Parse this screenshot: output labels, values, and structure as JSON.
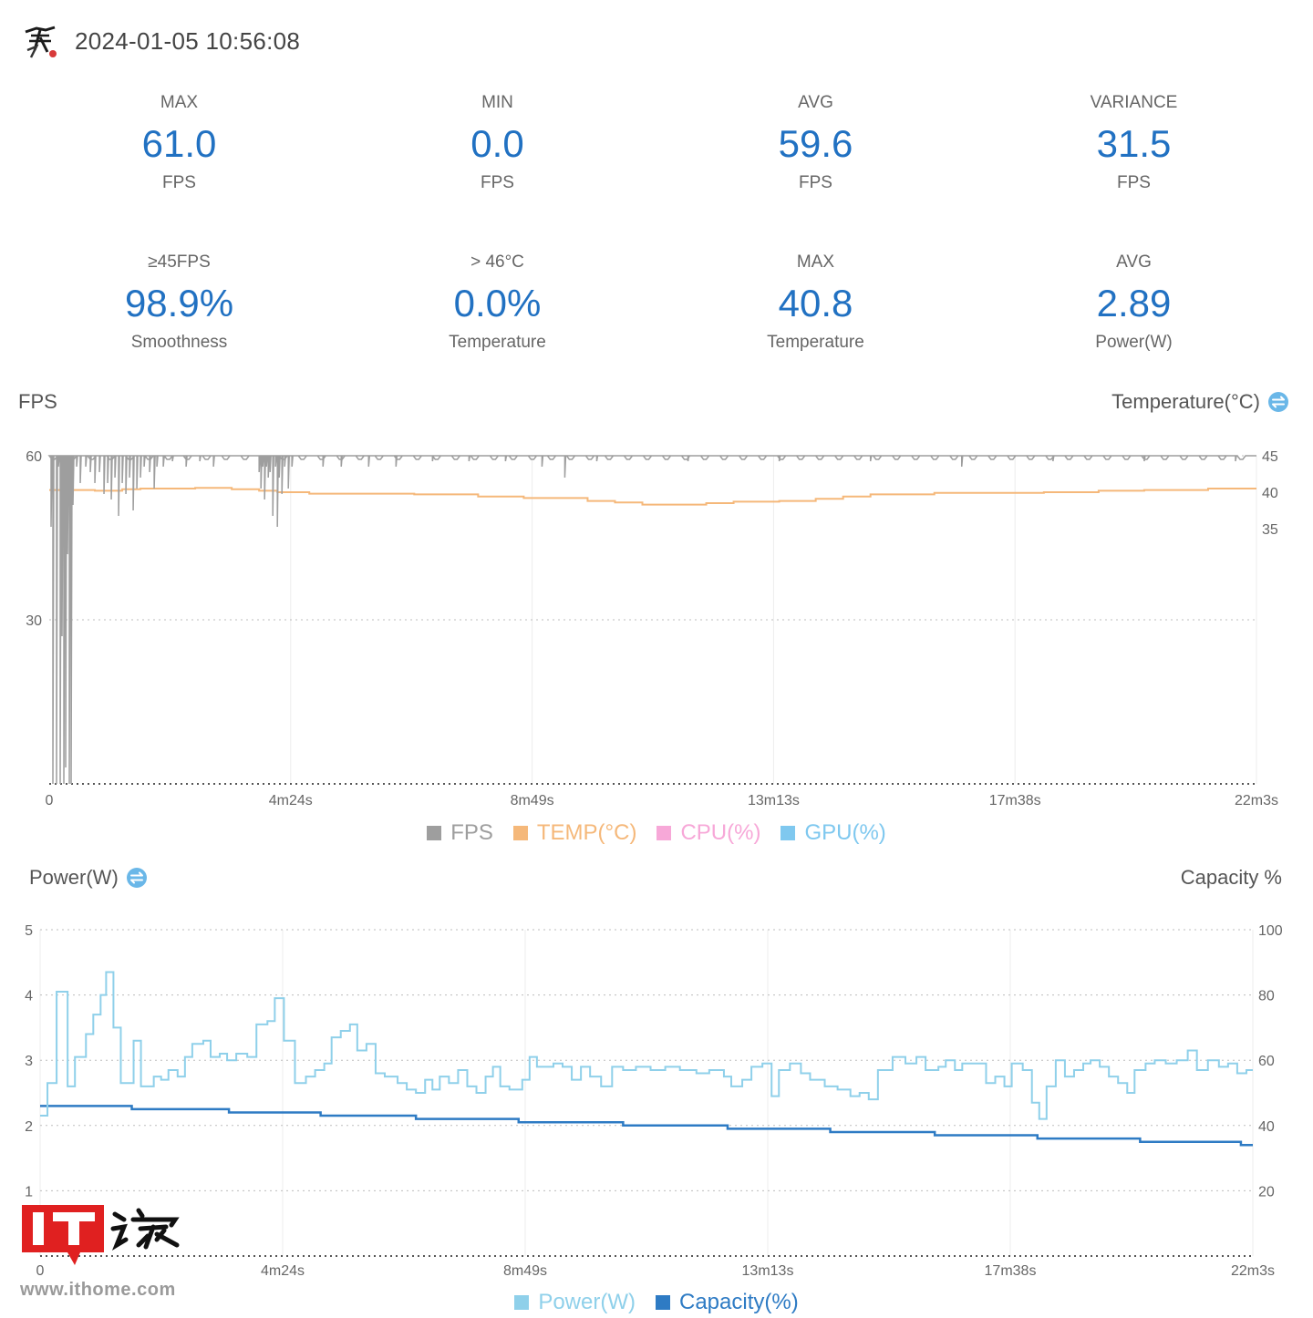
{
  "header": {
    "timestamp": "2024-01-05 10:56:08"
  },
  "stats": [
    [
      {
        "label": "MAX",
        "value": "61.0",
        "unit": "FPS"
      },
      {
        "label": "MIN",
        "value": "0.0",
        "unit": "FPS"
      },
      {
        "label": "AVG",
        "value": "59.6",
        "unit": "FPS"
      },
      {
        "label": "VARIANCE",
        "value": "31.5",
        "unit": "FPS"
      }
    ],
    [
      {
        "label": "≥45FPS",
        "value": "98.9%",
        "unit": "Smoothness"
      },
      {
        "label": "> 46°C",
        "value": "0.0%",
        "unit": "Temperature"
      },
      {
        "label": "MAX",
        "value": "40.8",
        "unit": "Temperature"
      },
      {
        "label": "AVG",
        "value": "2.89",
        "unit": "Power(W)"
      }
    ]
  ],
  "colors": {
    "accent": "#2171c2",
    "fps": "#9e9e9e",
    "temp": "#f5b87a",
    "cpu": "#f7a8d8",
    "gpu": "#7fc8ef",
    "power": "#8fd0ea",
    "capacity": "#2e7bc4",
    "swap_icon": "#6ab7e8"
  },
  "icons": {
    "avatar": "ink-painting-avatar",
    "swap": "swap-axis-icon",
    "watermark": "ithome-logo"
  },
  "watermark": {
    "url": "www.ithome.com"
  },
  "chart_data": [
    {
      "type": "line",
      "title_left": "FPS",
      "title_right": "Temperature(°C)",
      "x_ticks": [
        "0",
        "4m24s",
        "8m49s",
        "13m13s",
        "17m38s",
        "22m3s"
      ],
      "x_range_seconds": [
        0,
        1323
      ],
      "y_left": {
        "ticks": [
          "60",
          "30"
        ],
        "tick_values": [
          60,
          30
        ],
        "range": [
          0,
          60
        ]
      },
      "y_right": {
        "ticks": [
          "45",
          "40",
          "35"
        ],
        "tick_values": [
          45,
          40,
          35
        ],
        "range": [
          0,
          45
        ]
      },
      "grid": true,
      "legend": [
        "FPS",
        "TEMP(°C)",
        "CPU(%)",
        "GPU(%)"
      ],
      "legend_position": "bottom",
      "series": [
        {
          "name": "FPS",
          "axis": "left",
          "baseline": 60,
          "dips": [
            [
              2,
              47
            ],
            [
              4,
              0
            ],
            [
              8,
              0
            ],
            [
              10,
              58
            ],
            [
              12,
              0
            ],
            [
              14,
              27
            ],
            [
              16,
              0
            ],
            [
              18,
              3
            ],
            [
              20,
              42
            ],
            [
              22,
              0
            ],
            [
              24,
              0
            ],
            [
              26,
              51
            ],
            [
              30,
              58
            ],
            [
              34,
              55
            ],
            [
              40,
              58
            ],
            [
              45,
              57
            ],
            [
              50,
              55
            ],
            [
              55,
              57
            ],
            [
              60,
              53
            ],
            [
              64,
              55
            ],
            [
              68,
              52
            ],
            [
              72,
              56
            ],
            [
              76,
              49
            ],
            [
              80,
              55
            ],
            [
              84,
              53
            ],
            [
              88,
              56
            ],
            [
              92,
              50
            ],
            [
              96,
              54
            ],
            [
              100,
              56
            ],
            [
              104,
              58
            ],
            [
              110,
              57
            ],
            [
              115,
              54
            ],
            [
              118,
              58
            ],
            [
              125,
              58
            ],
            [
              135,
              59
            ],
            [
              150,
              58
            ],
            [
              165,
              59
            ],
            [
              180,
              58
            ],
            [
              230,
              57
            ],
            [
              232,
              54
            ],
            [
              234,
              58
            ],
            [
              236,
              52
            ],
            [
              238,
              58
            ],
            [
              240,
              56
            ],
            [
              242,
              57
            ],
            [
              245,
              49
            ],
            [
              248,
              58
            ],
            [
              250,
              47
            ],
            [
              252,
              56
            ],
            [
              255,
              53
            ],
            [
              258,
              58
            ],
            [
              262,
              54
            ],
            [
              266,
              58
            ],
            [
              300,
              58
            ],
            [
              320,
              58
            ],
            [
              350,
              58
            ],
            [
              380,
              58
            ],
            [
              420,
              59
            ],
            [
              460,
              59
            ],
            [
              500,
              59
            ],
            [
              540,
              58
            ],
            [
              565,
              56
            ],
            [
              600,
              59
            ],
            [
              700,
              59
            ],
            [
              800,
              59
            ],
            [
              900,
              59
            ],
            [
              1000,
              58
            ],
            [
              1100,
              59
            ],
            [
              1200,
              59
            ],
            [
              1300,
              59
            ]
          ]
        },
        {
          "name": "TEMP(°C)",
          "axis": "right",
          "steps": [
            [
              0,
              40.3
            ],
            [
              40,
              40.3
            ],
            [
              50,
              40.2
            ],
            [
              70,
              40.2
            ],
            [
              80,
              40.4
            ],
            [
              100,
              40.5
            ],
            [
              160,
              40.6
            ],
            [
              200,
              40.4
            ],
            [
              230,
              40.2
            ],
            [
              250,
              40.0
            ],
            [
              285,
              39.8
            ],
            [
              350,
              39.8
            ],
            [
              400,
              39.7
            ],
            [
              470,
              39.4
            ],
            [
              520,
              39.2
            ],
            [
              590,
              38.8
            ],
            [
              620,
              38.6
            ],
            [
              650,
              38.3
            ],
            [
              720,
              38.5
            ],
            [
              750,
              38.7
            ],
            [
              800,
              38.8
            ],
            [
              840,
              39.1
            ],
            [
              870,
              39.4
            ],
            [
              900,
              39.7
            ],
            [
              970,
              39.9
            ],
            [
              1090,
              40.0
            ],
            [
              1150,
              40.2
            ],
            [
              1200,
              40.3
            ],
            [
              1270,
              40.5
            ],
            [
              1323,
              40.5
            ]
          ]
        },
        {
          "name": "CPU(%)",
          "axis": "right",
          "steps": []
        },
        {
          "name": "GPU(%)",
          "axis": "right",
          "steps": []
        }
      ]
    },
    {
      "type": "line",
      "title_left": "Power(W)",
      "title_right": "Capacity %",
      "x_ticks": [
        "0",
        "4m24s",
        "8m49s",
        "13m13s",
        "17m38s",
        "22m3s"
      ],
      "x_range_seconds": [
        0,
        1323
      ],
      "y_left": {
        "ticks": [
          "5",
          "4",
          "3",
          "2",
          "1"
        ],
        "tick_values": [
          5,
          4,
          3,
          2,
          1
        ],
        "range": [
          0,
          5
        ]
      },
      "y_right": {
        "ticks": [
          "100",
          "80",
          "60",
          "40",
          "20"
        ],
        "tick_values": [
          100,
          80,
          60,
          40,
          20
        ],
        "range": [
          0,
          100
        ]
      },
      "grid": true,
      "legend": [
        "Power(W)",
        "Capacity(%)"
      ],
      "legend_position": "bottom",
      "series": [
        {
          "name": "Power(W)",
          "axis": "left",
          "steps": [
            [
              0,
              2.15
            ],
            [
              8,
              2.65
            ],
            [
              18,
              4.05
            ],
            [
              30,
              2.6
            ],
            [
              38,
              3.05
            ],
            [
              50,
              3.4
            ],
            [
              58,
              3.7
            ],
            [
              66,
              4.0
            ],
            [
              72,
              4.35
            ],
            [
              80,
              3.5
            ],
            [
              88,
              2.65
            ],
            [
              102,
              3.3
            ],
            [
              110,
              2.6
            ],
            [
              124,
              2.75
            ],
            [
              132,
              2.7
            ],
            [
              140,
              2.85
            ],
            [
              150,
              2.75
            ],
            [
              158,
              3.05
            ],
            [
              166,
              3.25
            ],
            [
              178,
              3.3
            ],
            [
              186,
              3.05
            ],
            [
              196,
              3.1
            ],
            [
              204,
              3.0
            ],
            [
              214,
              3.1
            ],
            [
              226,
              3.05
            ],
            [
              236,
              3.55
            ],
            [
              248,
              3.6
            ],
            [
              256,
              3.95
            ],
            [
              266,
              3.3
            ],
            [
              278,
              2.65
            ],
            [
              290,
              2.75
            ],
            [
              300,
              2.85
            ],
            [
              310,
              2.95
            ],
            [
              318,
              3.35
            ],
            [
              328,
              3.45
            ],
            [
              338,
              3.55
            ],
            [
              346,
              3.15
            ],
            [
              356,
              3.25
            ],
            [
              366,
              2.8
            ],
            [
              376,
              2.75
            ],
            [
              390,
              2.65
            ],
            [
              400,
              2.55
            ],
            [
              410,
              2.5
            ],
            [
              420,
              2.7
            ],
            [
              428,
              2.55
            ],
            [
              436,
              2.75
            ],
            [
              446,
              2.65
            ],
            [
              456,
              2.85
            ],
            [
              466,
              2.6
            ],
            [
              476,
              2.5
            ],
            [
              486,
              2.75
            ],
            [
              494,
              2.9
            ],
            [
              502,
              2.6
            ],
            [
              512,
              2.55
            ],
            [
              526,
              2.7
            ],
            [
              534,
              3.05
            ],
            [
              542,
              2.9
            ],
            [
              560,
              2.95
            ],
            [
              570,
              2.9
            ],
            [
              580,
              2.7
            ],
            [
              590,
              2.9
            ],
            [
              600,
              2.75
            ],
            [
              612,
              2.6
            ],
            [
              624,
              2.9
            ],
            [
              636,
              2.85
            ],
            [
              650,
              2.9
            ],
            [
              666,
              2.85
            ],
            [
              682,
              2.9
            ],
            [
              698,
              2.85
            ],
            [
              716,
              2.8
            ],
            [
              730,
              2.85
            ],
            [
              746,
              2.75
            ],
            [
              754,
              2.6
            ],
            [
              766,
              2.7
            ],
            [
              776,
              2.9
            ],
            [
              788,
              2.95
            ],
            [
              798,
              2.45
            ],
            [
              806,
              2.85
            ],
            [
              818,
              2.95
            ],
            [
              830,
              2.8
            ],
            [
              840,
              2.7
            ],
            [
              856,
              2.6
            ],
            [
              870,
              2.55
            ],
            [
              884,
              2.45
            ],
            [
              894,
              2.5
            ],
            [
              904,
              2.4
            ],
            [
              914,
              2.85
            ],
            [
              930,
              3.05
            ],
            [
              944,
              2.95
            ],
            [
              956,
              3.05
            ],
            [
              966,
              2.85
            ],
            [
              980,
              2.9
            ],
            [
              988,
              3.0
            ],
            [
              998,
              2.85
            ],
            [
              1006,
              2.95
            ],
            [
              1020,
              2.95
            ],
            [
              1032,
              2.65
            ],
            [
              1042,
              2.75
            ],
            [
              1052,
              2.6
            ],
            [
              1060,
              2.95
            ],
            [
              1072,
              2.85
            ],
            [
              1082,
              2.35
            ],
            [
              1090,
              2.1
            ],
            [
              1098,
              2.6
            ],
            [
              1108,
              3.0
            ],
            [
              1118,
              2.75
            ],
            [
              1128,
              2.85
            ],
            [
              1138,
              2.95
            ],
            [
              1146,
              3.0
            ],
            [
              1156,
              2.9
            ],
            [
              1166,
              2.75
            ],
            [
              1176,
              2.65
            ],
            [
              1186,
              2.5
            ],
            [
              1194,
              2.85
            ],
            [
              1206,
              2.95
            ],
            [
              1216,
              3.0
            ],
            [
              1228,
              2.95
            ],
            [
              1240,
              3.0
            ],
            [
              1252,
              3.15
            ],
            [
              1262,
              2.85
            ],
            [
              1274,
              3.0
            ],
            [
              1286,
              2.9
            ],
            [
              1296,
              2.95
            ],
            [
              1306,
              2.8
            ],
            [
              1316,
              2.85
            ],
            [
              1323,
              2.85
            ]
          ]
        },
        {
          "name": "Capacity(%)",
          "axis": "right",
          "steps": [
            [
              0,
              46
            ],
            [
              100,
              45
            ],
            [
              206,
              44
            ],
            [
              306,
              43
            ],
            [
              410,
              42
            ],
            [
              522,
              41
            ],
            [
              636,
              40
            ],
            [
              750,
              39
            ],
            [
              862,
              38
            ],
            [
              976,
              37
            ],
            [
              1088,
              36
            ],
            [
              1200,
              35
            ],
            [
              1310,
              34
            ],
            [
              1323,
              34
            ]
          ]
        }
      ]
    }
  ]
}
